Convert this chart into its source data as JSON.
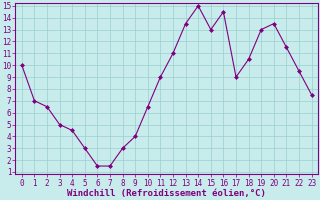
{
  "x": [
    0,
    1,
    2,
    3,
    4,
    5,
    6,
    7,
    8,
    9,
    10,
    11,
    12,
    13,
    14,
    15,
    16,
    17,
    18,
    19,
    20,
    21,
    22,
    23
  ],
  "y": [
    10,
    7,
    6.5,
    5,
    4.5,
    3,
    1.5,
    1.5,
    3,
    4,
    6.5,
    9,
    11,
    13.5,
    15,
    13,
    14.5,
    9,
    10.5,
    13,
    13.5,
    11.5,
    9.5,
    7.5
  ],
  "line_color": "#800080",
  "marker_color": "#800080",
  "bg_color": "#c8ecec",
  "grid_color": "#9acece",
  "xlabel": "Windchill (Refroidissement éolien,°C)",
  "xlim_min": -0.5,
  "xlim_max": 23.5,
  "ylim_min": 0.8,
  "ylim_max": 15.2,
  "yticks": [
    1,
    2,
    3,
    4,
    5,
    6,
    7,
    8,
    9,
    10,
    11,
    12,
    13,
    14,
    15
  ],
  "xticks": [
    0,
    1,
    2,
    3,
    4,
    5,
    6,
    7,
    8,
    9,
    10,
    11,
    12,
    13,
    14,
    15,
    16,
    17,
    18,
    19,
    20,
    21,
    22,
    23
  ],
  "tick_fontsize": 5.5,
  "label_fontsize": 6.5,
  "axis_color": "#800080",
  "spine_color": "#800080"
}
